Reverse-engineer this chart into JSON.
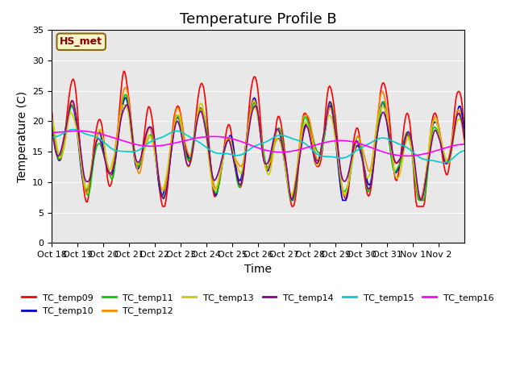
{
  "title": "Temperature Profile B",
  "xlabel": "Time",
  "ylabel": "Temperature (C)",
  "ylim": [
    0,
    35
  ],
  "yticks": [
    0,
    5,
    10,
    15,
    20,
    25,
    30,
    35
  ],
  "annotation": "HS_met",
  "x_labels": [
    "Oct 18",
    "Oct 19",
    "Oct 20",
    "Oct 21",
    "Oct 22",
    "Oct 23",
    "Oct 24",
    "Oct 25",
    "Oct 26",
    "Oct 27",
    "Oct 28",
    "Oct 29",
    "Oct 30",
    "Oct 31",
    "Nov 1",
    "Nov 2"
  ],
  "series_colors": {
    "TC_temp09": "#ff0000",
    "TC_temp10": "#0000cc",
    "TC_temp11": "#00cc00",
    "TC_temp12": "#ff8800",
    "TC_temp13": "#cccc00",
    "TC_temp14": "#880088",
    "TC_temp15": "#00cccc",
    "TC_temp16": "#ff00ff"
  },
  "background_color": "#e8e8e8",
  "title_fontsize": 13,
  "axis_label_fontsize": 10
}
